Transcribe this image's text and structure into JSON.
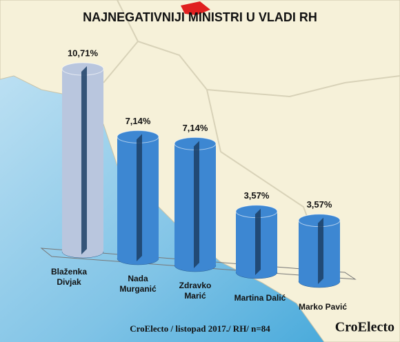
{
  "chart_data": {
    "type": "bar",
    "title": "NAJNEGATIVNIJI MINISTRI U VLADI RH",
    "categories": [
      "Blaženka Divjak",
      "Nada Murganić",
      "Zdravko Marić",
      "Martina Dalić",
      "Marko Pavić"
    ],
    "values": [
      10.71,
      7.14,
      7.14,
      3.57,
      3.57
    ],
    "value_labels": [
      "10,71%",
      "7,14%",
      "7,14%",
      "3,57%",
      "3,57%"
    ],
    "colors": [
      "#b9c6de",
      "#3d87d2",
      "#3d87d2",
      "#3d87d2",
      "#3d87d2"
    ],
    "footer": "CroElecto / listopad 2017./ RH/ n=84",
    "watermark": "CroElecto"
  }
}
